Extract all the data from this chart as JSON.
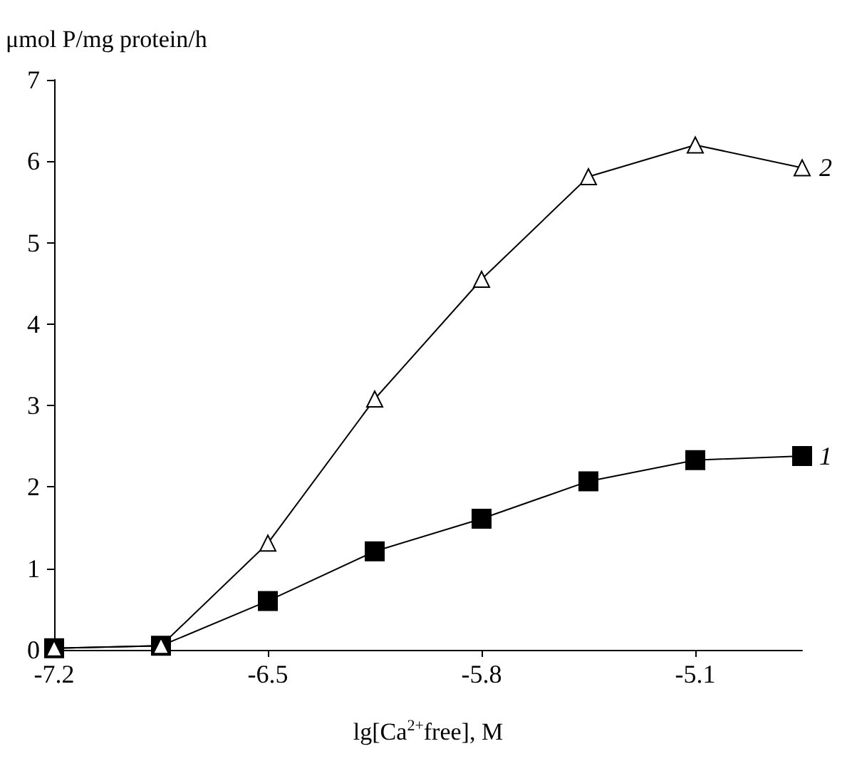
{
  "chart_data": {
    "type": "line",
    "xlabel": "lg[Ca$^{2+}$free], M",
    "ylabel": "μmol P/mg protein/h",
    "x": [
      -7.2,
      -6.85,
      -6.5,
      -6.15,
      -5.8,
      -5.45,
      -5.1,
      -4.75
    ],
    "series": [
      {
        "name": "1",
        "color": "#000000",
        "marker": "square",
        "values": [
          0.02,
          0.05,
          0.6,
          1.21,
          1.61,
          2.07,
          2.33,
          2.38
        ]
      },
      {
        "name": "2",
        "color": "#000000",
        "marker": "triangle",
        "values": [
          0.02,
          0.05,
          1.31,
          3.08,
          4.55,
          5.81,
          6.2,
          5.92
        ]
      }
    ],
    "xlim": [
      -7.2,
      -4.75
    ],
    "xticks": [
      -7.2,
      -6.5,
      -5.8,
      -5.1
    ],
    "ylim": [
      0,
      7
    ],
    "yticks": [
      0,
      1,
      2,
      3,
      4,
      5,
      6,
      7
    ],
    "grid": false,
    "legend": false,
    "line_style": "solid"
  }
}
